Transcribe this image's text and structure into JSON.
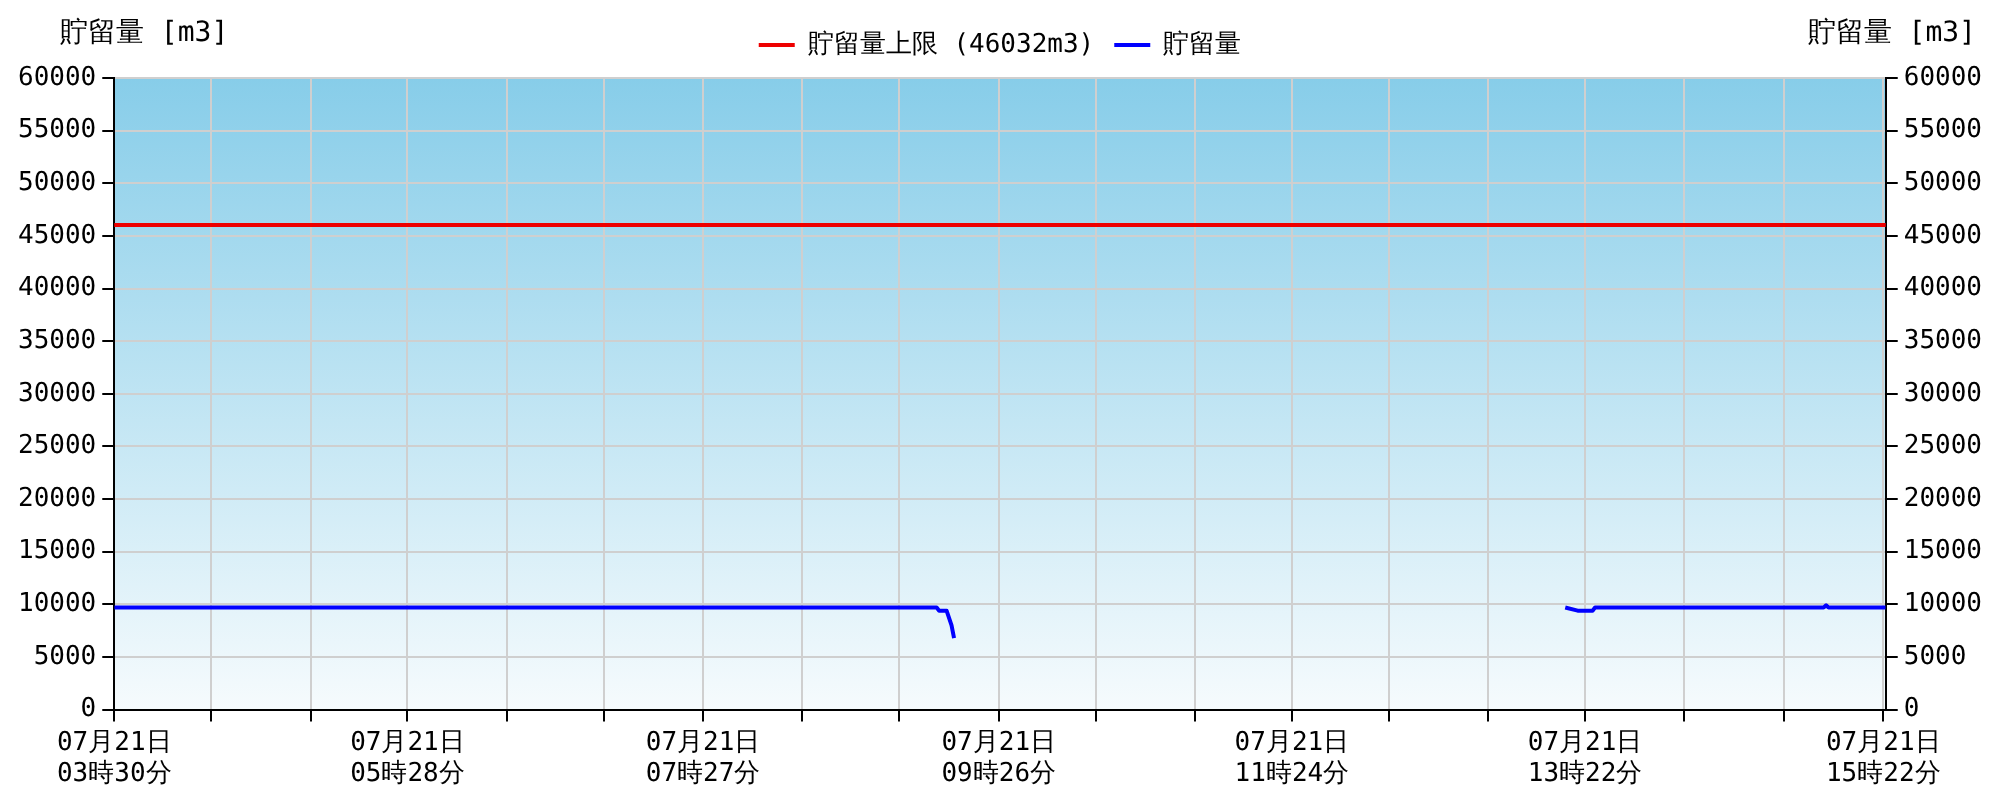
{
  "chart_data": {
    "type": "line",
    "ylabel": "貯留量 [m3]",
    "y2label": "貯留量 [m3]",
    "xlim": [
      "--07-21T03:30",
      "--07-21T15:23"
    ],
    "xticks": [
      {
        "value": "--07-21T03:30",
        "label": "07月21日\n03時30分"
      },
      {
        "value": "--07-21T04:09",
        "label": null
      },
      {
        "value": "--07-21T04:49",
        "label": null
      },
      {
        "value": "--07-21T05:28",
        "label": "07月21日\n05時28分"
      },
      {
        "value": "--07-21T06:08",
        "label": null
      },
      {
        "value": "--07-21T06:47",
        "label": null
      },
      {
        "value": "--07-21T07:27",
        "label": "07月21日\n07時27分"
      },
      {
        "value": "--07-21T08:07",
        "label": null
      },
      {
        "value": "--07-21T08:46",
        "label": null
      },
      {
        "value": "--07-21T09:26",
        "label": "07月21日\n09時26分"
      },
      {
        "value": "--07-21T10:05",
        "label": null
      },
      {
        "value": "--07-21T10:45",
        "label": null
      },
      {
        "value": "--07-21T11:24",
        "label": "07月21日\n11時24分"
      },
      {
        "value": "--07-21T12:03",
        "label": null
      },
      {
        "value": "--07-21T12:43",
        "label": null
      },
      {
        "value": "--07-21T13:22",
        "label": "07月21日\n13時22分"
      },
      {
        "value": "--07-21T14:02",
        "label": null
      },
      {
        "value": "--07-21T14:42",
        "label": null
      },
      {
        "value": "--07-21T15:22",
        "label": "07月21日\n15時22分"
      }
    ],
    "ylim": [
      0,
      60000
    ],
    "yticks": [
      0,
      5000,
      10000,
      15000,
      20000,
      25000,
      30000,
      35000,
      40000,
      45000,
      50000,
      55000,
      60000
    ],
    "y2lim": [
      0,
      60000
    ],
    "y2ticks": [
      0,
      5000,
      10000,
      15000,
      20000,
      25000,
      30000,
      35000,
      40000,
      45000,
      50000,
      55000,
      60000
    ],
    "grid": true,
    "legend": "top",
    "marker": "none",
    "line_style": "solid",
    "ref_lines": [
      {
        "axis": "y",
        "value": 46032,
        "label": "貯留量上限 (46032m3)",
        "color": "#ee0000"
      }
    ],
    "series": [
      {
        "name": "貯留量",
        "color": "#0000ff",
        "x": [
          "--07-21T03:30",
          "--07-21T09:01",
          "--07-21T09:02",
          "--07-21T09:05",
          "--07-21T09:07",
          "--07-21T09:08",
          "--07-21T11:00",
          "--07-21T13:14",
          "--07-21T13:19",
          "--07-21T13:25",
          "--07-21T13:26",
          "--07-21T14:58",
          "--07-21T14:59",
          "--07-21T15:00",
          "--07-21T15:23"
        ],
        "values": [
          9700,
          9700,
          9400,
          9400,
          8000,
          6800,
          null,
          9700,
          9400,
          9400,
          9700,
          9700,
          9900,
          9700,
          9700
        ]
      }
    ]
  }
}
